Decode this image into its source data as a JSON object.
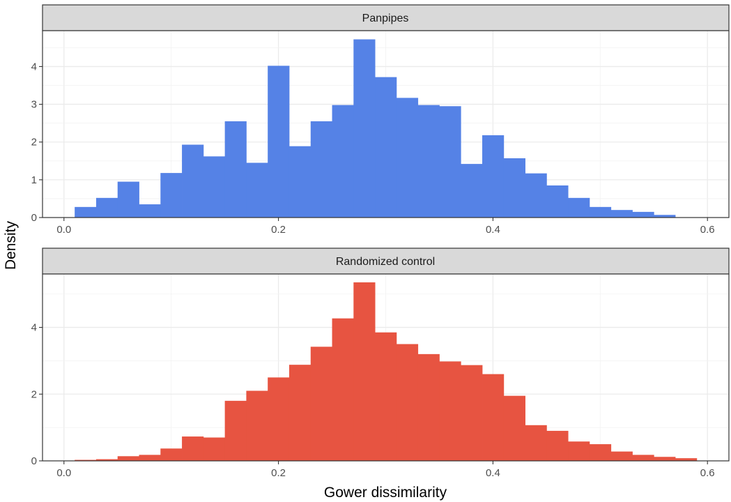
{
  "chart_data": {
    "type": "bar",
    "xlabel": "Gower dissimilarity",
    "ylabel": "Density",
    "xlim": [
      -0.02,
      0.62
    ],
    "x_ticks": [
      "0.0",
      "0.2",
      "0.4",
      "0.6"
    ],
    "bin_width": 0.02,
    "bin_starts": [
      0.01,
      0.03,
      0.05,
      0.07,
      0.09,
      0.11,
      0.13,
      0.15,
      0.17,
      0.19,
      0.21,
      0.23,
      0.25,
      0.27,
      0.29,
      0.31,
      0.33,
      0.35,
      0.37,
      0.39,
      0.41,
      0.43,
      0.45,
      0.47,
      0.49,
      0.51,
      0.53,
      0.55,
      0.57
    ],
    "grid": true,
    "panels": [
      {
        "title": "Panpipes",
        "color": "#5582E6",
        "ylim": [
          0,
          4.95
        ],
        "y_ticks": [
          "0",
          "1",
          "2",
          "3",
          "4"
        ],
        "values": [
          0.28,
          0.52,
          0.95,
          0.35,
          1.18,
          1.93,
          1.62,
          2.55,
          1.45,
          4.02,
          1.89,
          2.55,
          2.98,
          4.72,
          3.72,
          3.17,
          2.98,
          2.95,
          1.42,
          2.18,
          1.57,
          1.17,
          0.85,
          0.52,
          0.28,
          0.2,
          0.15,
          0.07,
          0.0
        ]
      },
      {
        "title": "Randomized control",
        "color": "#E75441",
        "ylim": [
          0,
          5.6
        ],
        "y_ticks": [
          "0",
          "2",
          "4"
        ],
        "values": [
          0.03,
          0.05,
          0.14,
          0.18,
          0.37,
          0.73,
          0.7,
          1.8,
          2.1,
          2.5,
          2.88,
          3.42,
          4.27,
          5.35,
          3.85,
          3.5,
          3.2,
          2.98,
          2.87,
          2.6,
          1.95,
          1.07,
          0.9,
          0.58,
          0.5,
          0.28,
          0.18,
          0.12,
          0.08
        ]
      }
    ]
  }
}
